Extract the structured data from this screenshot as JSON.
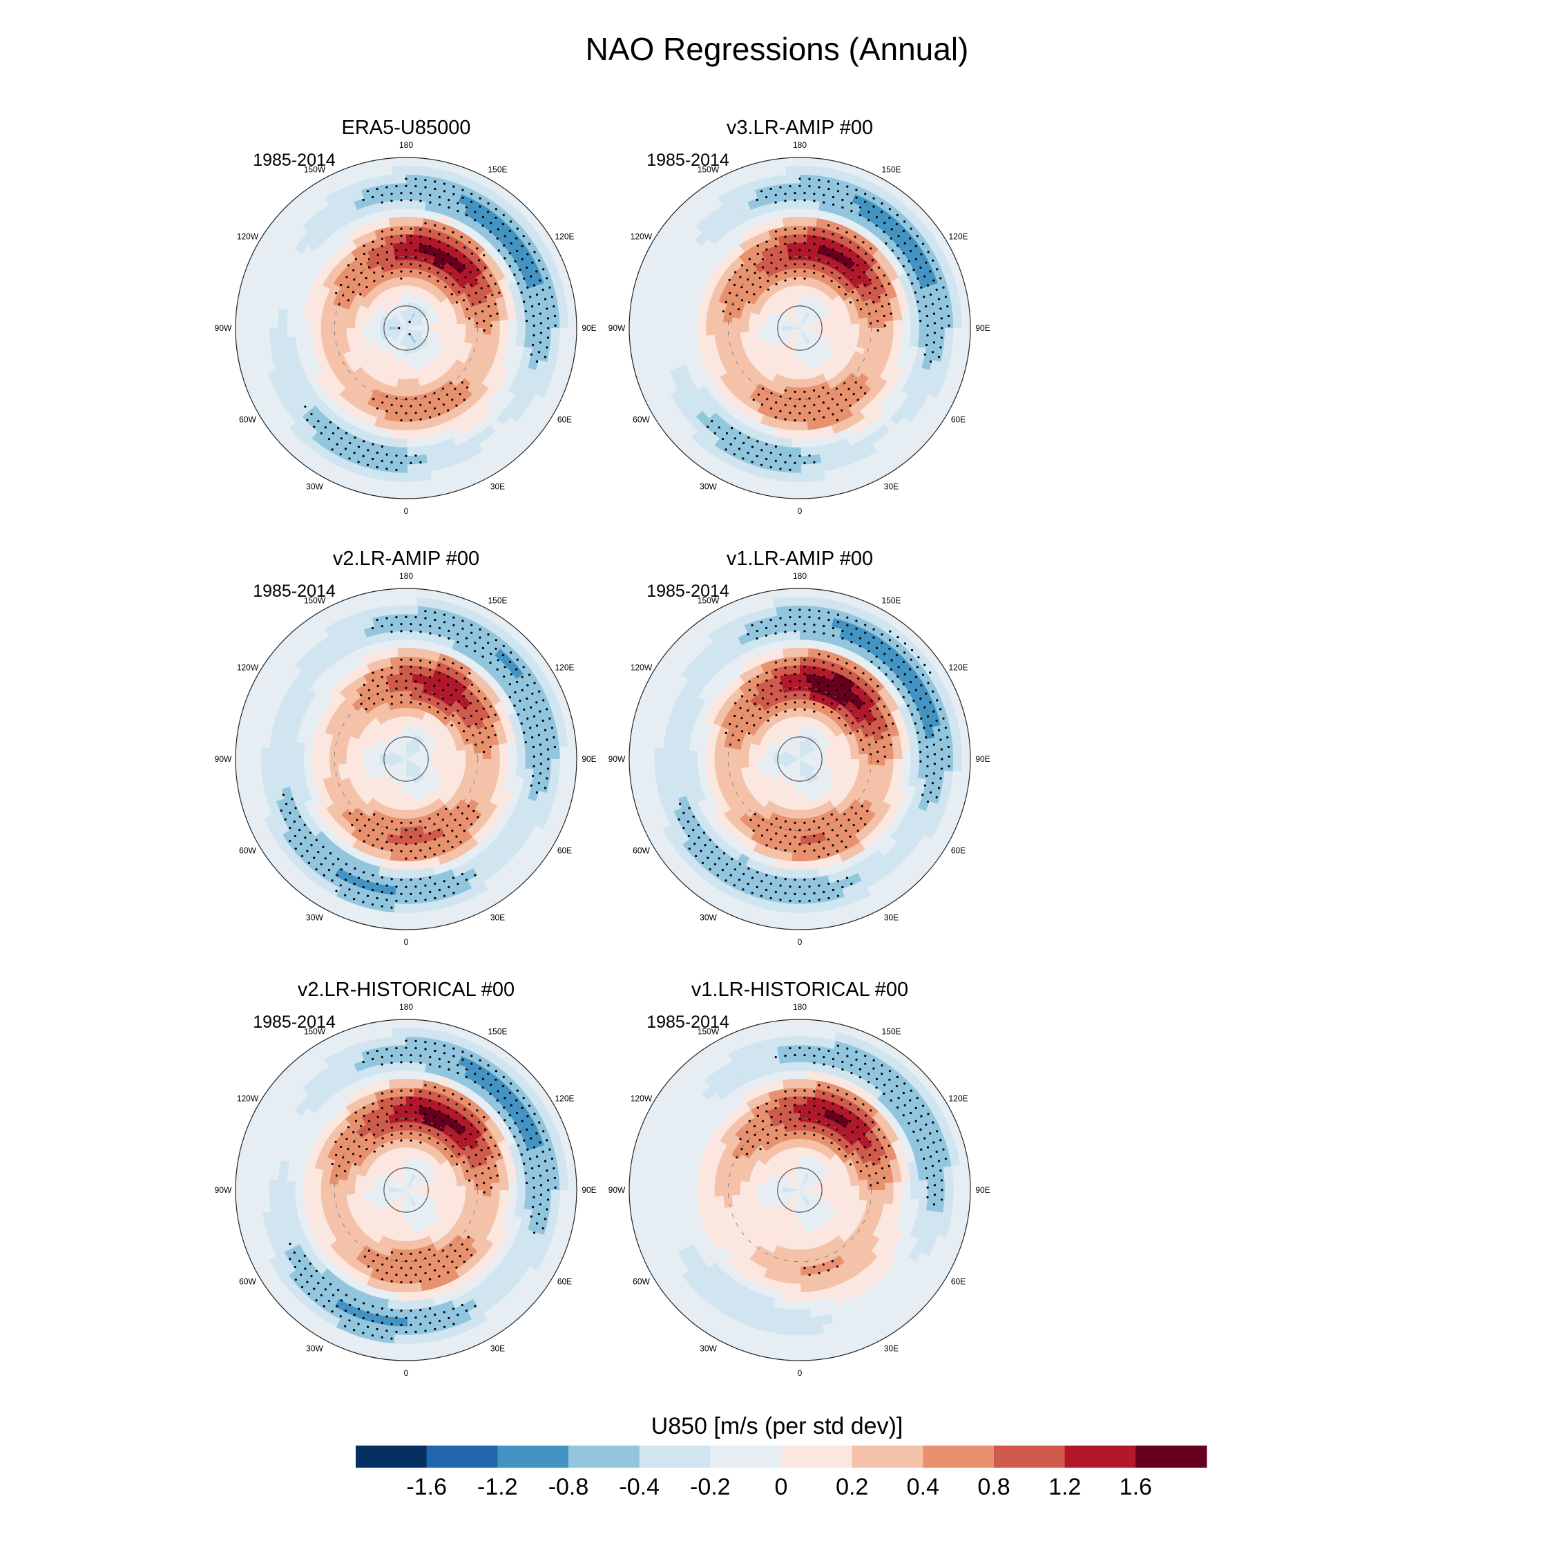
{
  "chart_data": {
    "type": "heatmap",
    "title": "NAO Regressions (Annual)",
    "projection": "north-polar-stereographic",
    "colorbar": {
      "title": "U850 [m/s (per std dev)]",
      "tick_labels": [
        "-1.6",
        "-1.2",
        "-0.8",
        "-0.4",
        "-0.2",
        "0",
        "0.2",
        "0.4",
        "0.8",
        "1.2",
        "1.6"
      ],
      "levels": [
        -1.6,
        -1.2,
        -0.8,
        -0.4,
        -0.2,
        0,
        0.2,
        0.4,
        0.8,
        1.2,
        1.6
      ],
      "colors": [
        "#053061",
        "#2166ac",
        "#4393c3",
        "#92c5de",
        "#d1e5f0",
        "#e6eef4",
        "#fbe7df",
        "#f4c2a8",
        "#e8916f",
        "#d05a4b",
        "#b2182b",
        "#67001f"
      ]
    },
    "longitude_labels": [
      {
        "lon": 180,
        "label": "180"
      },
      {
        "lon": 150,
        "label": "150E"
      },
      {
        "lon": 120,
        "label": "120E"
      },
      {
        "lon": 90,
        "label": "90E"
      },
      {
        "lon": 60,
        "label": "60E"
      },
      {
        "lon": 30,
        "label": "30E"
      },
      {
        "lon": 0,
        "label": "0"
      },
      {
        "lon": -30,
        "label": "30W"
      },
      {
        "lon": -60,
        "label": "60W"
      },
      {
        "lon": -90,
        "label": "90W"
      },
      {
        "lon": -120,
        "label": "120W"
      },
      {
        "lon": -150,
        "label": "150W"
      }
    ],
    "panels": [
      {
        "title": "ERA5-U85000",
        "period": "1985-2014",
        "features": {
          "jet_pos": 1.6,
          "jet_neg": -1.0,
          "pac_pos": 0.6,
          "pac_neg": -0.5,
          "eur_pos": 0.5,
          "asia_neg": -0.3,
          "pole_neg": -0.3
        }
      },
      {
        "title": "v3.LR-AMIP  #00",
        "period": "1985-2014",
        "features": {
          "jet_pos": 1.5,
          "jet_neg": -1.0,
          "pac_pos": 0.7,
          "pac_neg": -0.5,
          "eur_pos": 0.6,
          "asia_neg": -0.2,
          "pole_neg": -0.1
        }
      },
      {
        "title": "v2.LR-AMIP  #00",
        "period": "1985-2014",
        "features": {
          "jet_pos": 1.3,
          "jet_neg": -0.9,
          "pac_pos": 0.9,
          "pac_neg": -0.8,
          "eur_pos": 0.3,
          "asia_neg": -0.4,
          "pole_neg": -0.2
        }
      },
      {
        "title": "v1.LR-AMIP  #00",
        "period": "1985-2014",
        "features": {
          "jet_pos": 1.7,
          "jet_neg": -1.1,
          "pac_pos": 0.8,
          "pac_neg": -0.7,
          "eur_pos": 0.6,
          "asia_neg": -0.4,
          "pole_neg": -0.2
        }
      },
      {
        "title": "v2.LR-HISTORICAL  #00",
        "period": "1985-2014",
        "features": {
          "jet_pos": 1.6,
          "jet_neg": -1.0,
          "pac_pos": 0.7,
          "pac_neg": -0.8,
          "eur_pos": 0.6,
          "asia_neg": -0.3,
          "pole_neg": -0.1
        }
      },
      {
        "title": "v1.LR-HISTORICAL  #00",
        "period": "1985-2014",
        "features": {
          "jet_pos": 1.5,
          "jet_neg": -0.8,
          "pac_pos": 0.4,
          "pac_neg": -0.3,
          "eur_pos": 0.4,
          "asia_neg": -0.2,
          "pole_neg": -0.1
        }
      }
    ]
  }
}
